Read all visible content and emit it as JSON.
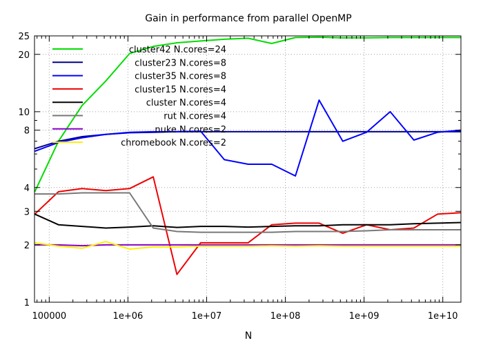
{
  "chart_data": {
    "type": "line",
    "title": "Gain in performance from parallel OpenMP",
    "xlabel": "N",
    "ylabel": "",
    "x_scale": "log",
    "y_scale": "log",
    "xlim": [
      65000,
      17000000000
    ],
    "ylim": [
      1,
      25
    ],
    "grid": true,
    "legend_position": "top-left",
    "x_ticks": [
      {
        "value": 100000,
        "label": "100000"
      },
      {
        "value": 1000000,
        "label": "1e+06"
      },
      {
        "value": 10000000,
        "label": "1e+07"
      },
      {
        "value": 100000000,
        "label": "1e+08"
      },
      {
        "value": 1000000000,
        "label": "1e+09"
      },
      {
        "value": 10000000000,
        "label": "1e+10"
      }
    ],
    "y_ticks": [
      {
        "value": 1,
        "label": "1"
      },
      {
        "value": 2,
        "label": "2"
      },
      {
        "value": 3,
        "label": "3"
      },
      {
        "value": 4,
        "label": "4"
      },
      {
        "value": 8,
        "label": "8"
      },
      {
        "value": 10,
        "label": "10"
      },
      {
        "value": 20,
        "label": "20"
      },
      {
        "value": 25,
        "label": "25"
      }
    ],
    "series": [
      {
        "name": "cluster42 N.cores=24",
        "color": "#00dd00",
        "points": [
          [
            65536,
            3.8
          ],
          [
            131072,
            7.0
          ],
          [
            262144,
            10.8
          ],
          [
            524288,
            14.5
          ],
          [
            1048576,
            20.2
          ],
          [
            2097152,
            22.0
          ],
          [
            4194304,
            23.0
          ],
          [
            8388608,
            23.5
          ],
          [
            16777216,
            24.0
          ],
          [
            33554432,
            24.3
          ],
          [
            67108864,
            22.8
          ],
          [
            134217728,
            24.5
          ],
          [
            268435456,
            24.6
          ],
          [
            536870912,
            24.4
          ],
          [
            1073741824,
            24.4
          ],
          [
            2147483648,
            24.5
          ],
          [
            4294967296,
            24.5
          ],
          [
            8589934592,
            24.5
          ],
          [
            17179869184,
            24.5
          ]
        ]
      },
      {
        "name": "cluster23 N.cores=8",
        "color": "#000088",
        "points": [
          [
            65536,
            6.4
          ],
          [
            131072,
            7.0
          ],
          [
            262144,
            7.4
          ],
          [
            524288,
            7.6
          ],
          [
            1048576,
            7.75
          ],
          [
            2097152,
            7.8
          ],
          [
            4194304,
            7.85
          ],
          [
            8388608,
            7.85
          ],
          [
            16777216,
            7.85
          ],
          [
            33554432,
            7.85
          ],
          [
            67108864,
            7.85
          ],
          [
            134217728,
            7.85
          ],
          [
            268435456,
            7.85
          ],
          [
            536870912,
            7.85
          ],
          [
            1073741824,
            7.85
          ],
          [
            2147483648,
            7.85
          ],
          [
            4194304000,
            7.85
          ],
          [
            8589934592,
            7.85
          ],
          [
            17179869184,
            7.85
          ]
        ]
      },
      {
        "name": "cluster35 N.cores=8",
        "color": "#0000ff",
        "points": [
          [
            65536,
            6.2
          ],
          [
            131072,
            6.9
          ],
          [
            262144,
            7.3
          ],
          [
            524288,
            7.6
          ],
          [
            1048576,
            7.8
          ],
          [
            2097152,
            7.85
          ],
          [
            4194304,
            7.85
          ],
          [
            8388608,
            7.9
          ],
          [
            16777216,
            5.6
          ],
          [
            33554432,
            5.3
          ],
          [
            67108864,
            5.3
          ],
          [
            134217728,
            4.6
          ],
          [
            268435456,
            11.5
          ],
          [
            536870912,
            7.0
          ],
          [
            1073741824,
            7.8
          ],
          [
            2147483648,
            10.0
          ],
          [
            4294967296,
            7.1
          ],
          [
            8589934592,
            7.8
          ],
          [
            17179869184,
            8.0
          ]
        ]
      },
      {
        "name": "cluster15 N.cores=4",
        "color": "#ee0000",
        "points": [
          [
            65536,
            2.9
          ],
          [
            131072,
            3.8
          ],
          [
            262144,
            3.95
          ],
          [
            524288,
            3.85
          ],
          [
            1048576,
            3.95
          ],
          [
            2097152,
            4.55
          ],
          [
            4194304,
            1.4
          ],
          [
            8388608,
            2.05
          ],
          [
            16777216,
            2.05
          ],
          [
            33554432,
            2.05
          ],
          [
            67108864,
            2.55
          ],
          [
            134217728,
            2.6
          ],
          [
            268435456,
            2.6
          ],
          [
            536870912,
            2.3
          ],
          [
            1073741824,
            2.55
          ],
          [
            2147483648,
            2.4
          ],
          [
            4294967296,
            2.45
          ],
          [
            8589934592,
            2.9
          ],
          [
            17179869184,
            2.95
          ]
        ]
      },
      {
        "name": "cluster N.cores=4",
        "color": "#000000",
        "points": [
          [
            65536,
            2.9
          ],
          [
            131072,
            2.55
          ],
          [
            262144,
            2.5
          ],
          [
            524288,
            2.45
          ],
          [
            1048576,
            2.48
          ],
          [
            2097152,
            2.52
          ],
          [
            4194304,
            2.47
          ],
          [
            8388608,
            2.5
          ],
          [
            16777216,
            2.5
          ],
          [
            33554432,
            2.48
          ],
          [
            67108864,
            2.5
          ],
          [
            134217728,
            2.52
          ],
          [
            268435456,
            2.52
          ],
          [
            536870912,
            2.55
          ],
          [
            1073741824,
            2.55
          ],
          [
            2147483648,
            2.55
          ],
          [
            4294967296,
            2.58
          ],
          [
            8589934592,
            2.6
          ],
          [
            17179869184,
            2.62
          ]
        ]
      },
      {
        "name": "rut N.cores=4",
        "color": "#777777",
        "points": [
          [
            65536,
            3.7
          ],
          [
            131072,
            3.7
          ],
          [
            262144,
            3.75
          ],
          [
            524288,
            3.75
          ],
          [
            1048576,
            3.75
          ],
          [
            2097152,
            2.45
          ],
          [
            4194304,
            2.35
          ],
          [
            8388608,
            2.33
          ],
          [
            16777216,
            2.33
          ],
          [
            33554432,
            2.33
          ],
          [
            67108864,
            2.33
          ],
          [
            134217728,
            2.35
          ],
          [
            268435456,
            2.35
          ],
          [
            536870912,
            2.35
          ],
          [
            1073741824,
            2.37
          ],
          [
            2147483648,
            2.4
          ],
          [
            4294967296,
            2.4
          ],
          [
            8589934592,
            2.4
          ],
          [
            17179869184,
            2.4
          ]
        ]
      },
      {
        "name": "nuke N.cores=2",
        "color": "#8800cc",
        "points": [
          [
            65536,
            2.0
          ],
          [
            131072,
            2.0
          ],
          [
            262144,
            1.98
          ],
          [
            524288,
            2.0
          ],
          [
            1048576,
            2.0
          ],
          [
            2097152,
            2.0
          ],
          [
            4194304,
            2.0
          ],
          [
            8388608,
            2.0
          ],
          [
            16777216,
            2.0
          ],
          [
            33554432,
            2.0
          ],
          [
            67108864,
            2.0
          ],
          [
            134217728,
            2.0
          ],
          [
            268435456,
            2.0
          ],
          [
            536870912,
            2.0
          ],
          [
            1073741824,
            2.0
          ],
          [
            2147483648,
            2.0
          ],
          [
            4294967296,
            2.0
          ],
          [
            8589934592,
            2.0
          ],
          [
            17179869184,
            2.0
          ]
        ]
      },
      {
        "name": "chromebook N.cores=2",
        "color": "#ffee00",
        "points": [
          [
            65536,
            2.05
          ],
          [
            131072,
            1.97
          ],
          [
            262144,
            1.92
          ],
          [
            524288,
            2.08
          ],
          [
            1048576,
            1.9
          ],
          [
            2097152,
            1.95
          ],
          [
            4194304,
            1.95
          ],
          [
            8388608,
            1.97
          ],
          [
            16777216,
            1.97
          ],
          [
            33554432,
            1.97
          ],
          [
            67108864,
            1.98
          ],
          [
            134217728,
            1.97
          ],
          [
            268435456,
            1.98
          ],
          [
            536870912,
            1.97
          ],
          [
            1073741824,
            1.97
          ],
          [
            2147483648,
            1.97
          ],
          [
            4294967296,
            1.97
          ],
          [
            8589934592,
            1.97
          ],
          [
            17179869184,
            1.97
          ]
        ]
      }
    ]
  }
}
